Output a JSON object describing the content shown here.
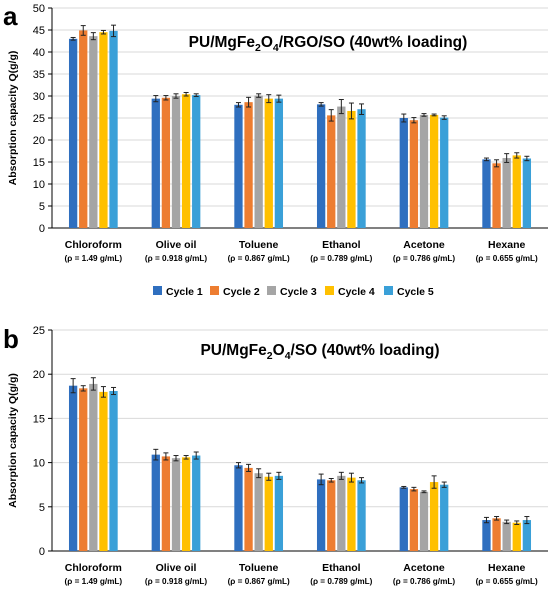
{
  "legend": {
    "entries": [
      "Cycle 1",
      "Cycle 2",
      "Cycle 3",
      "Cycle 4",
      "Cycle 5"
    ],
    "colors": [
      "#2f6fbf",
      "#ed7d31",
      "#a5a5a5",
      "#ffc000",
      "#3aa0d8"
    ]
  },
  "chart_data": [
    {
      "panel": "a",
      "type": "bar",
      "title_parts": [
        "PU/MgFe",
        "2",
        "O",
        "4",
        "/RGO/SO (40wt% loading)"
      ],
      "ylabel": "Absorption capacity Q(g/g)",
      "ylim": [
        0,
        50
      ],
      "yticks": [
        0,
        5,
        10,
        15,
        20,
        25,
        30,
        35,
        40,
        45,
        50
      ],
      "categories": [
        "Chloroform",
        "Olive oil",
        "Toluene",
        "Ethanol",
        "Acetone",
        "Hexane"
      ],
      "densities": [
        "(ρ = 1.49 g/mL)",
        "(ρ = 0.918 g/mL)",
        "(ρ = 0.867 g/mL)",
        "(ρ = 0.789 g/mL)",
        "(ρ = 0.786 g/mL)",
        "(ρ = 0.655 g/mL)"
      ],
      "series": [
        {
          "name": "Cycle 1",
          "values": [
            43.0,
            29.4,
            28.0,
            28.1,
            25.0,
            15.6
          ],
          "errors": [
            0.3,
            0.7,
            0.5,
            0.4,
            0.9,
            0.3
          ]
        },
        {
          "name": "Cycle 2",
          "values": [
            44.9,
            29.6,
            28.6,
            25.6,
            24.5,
            14.7
          ],
          "errors": [
            1.1,
            0.5,
            1.1,
            1.3,
            0.6,
            0.8
          ]
        },
        {
          "name": "Cycle 3",
          "values": [
            43.6,
            30.0,
            30.1,
            27.6,
            25.7,
            15.9
          ],
          "errors": [
            0.8,
            0.5,
            0.4,
            1.6,
            0.3,
            1.0
          ]
        },
        {
          "name": "Cycle 4",
          "values": [
            44.5,
            30.4,
            29.4,
            26.6,
            25.7,
            16.5
          ],
          "errors": [
            0.4,
            0.4,
            0.9,
            1.8,
            0.2,
            0.6
          ]
        },
        {
          "name": "Cycle 5",
          "values": [
            44.8,
            30.2,
            29.4,
            27.0,
            25.1,
            15.8
          ],
          "errors": [
            1.3,
            0.3,
            0.8,
            1.2,
            0.4,
            0.5
          ]
        }
      ],
      "grid": true
    },
    {
      "panel": "b",
      "type": "bar",
      "title_parts": [
        "PU/MgFe",
        "2",
        "O",
        "4",
        "/SO (40wt% loading)"
      ],
      "ylabel": "Absorption capacity Q(g/g)",
      "ylim": [
        0,
        25
      ],
      "yticks": [
        0,
        5,
        10,
        15,
        20,
        25
      ],
      "categories": [
        "Chloroform",
        "Olive oil",
        "Toluene",
        "Ethanol",
        "Acetone",
        "Hexane"
      ],
      "densities": [
        "(ρ = 1.49 g/mL)",
        "(ρ = 0.918 g/mL)",
        "(ρ = 0.867 g/mL)",
        "(ρ = 0.789 g/mL)",
        "(ρ = 0.786 g/mL)",
        "(ρ = 0.655 g/mL)"
      ],
      "series": [
        {
          "name": "Cycle 1",
          "values": [
            18.7,
            10.9,
            9.7,
            8.1,
            7.2,
            3.5
          ],
          "errors": [
            0.8,
            0.6,
            0.3,
            0.6,
            0.1,
            0.3
          ]
        },
        {
          "name": "Cycle 2",
          "values": [
            18.4,
            10.7,
            9.4,
            8.0,
            7.0,
            3.7
          ],
          "errors": [
            0.3,
            0.4,
            0.4,
            0.2,
            0.2,
            0.2
          ]
        },
        {
          "name": "Cycle 3",
          "values": [
            18.9,
            10.5,
            8.8,
            8.5,
            6.7,
            3.3
          ],
          "errors": [
            0.7,
            0.3,
            0.5,
            0.4,
            0.1,
            0.2
          ]
        },
        {
          "name": "Cycle 4",
          "values": [
            18.0,
            10.6,
            8.4,
            8.3,
            7.8,
            3.2
          ],
          "errors": [
            0.6,
            0.2,
            0.4,
            0.5,
            0.7,
            0.2
          ]
        },
        {
          "name": "Cycle 5",
          "values": [
            18.1,
            10.8,
            8.5,
            8.0,
            7.5,
            3.5
          ],
          "errors": [
            0.4,
            0.4,
            0.4,
            0.3,
            0.3,
            0.4
          ]
        }
      ],
      "grid": true
    }
  ]
}
